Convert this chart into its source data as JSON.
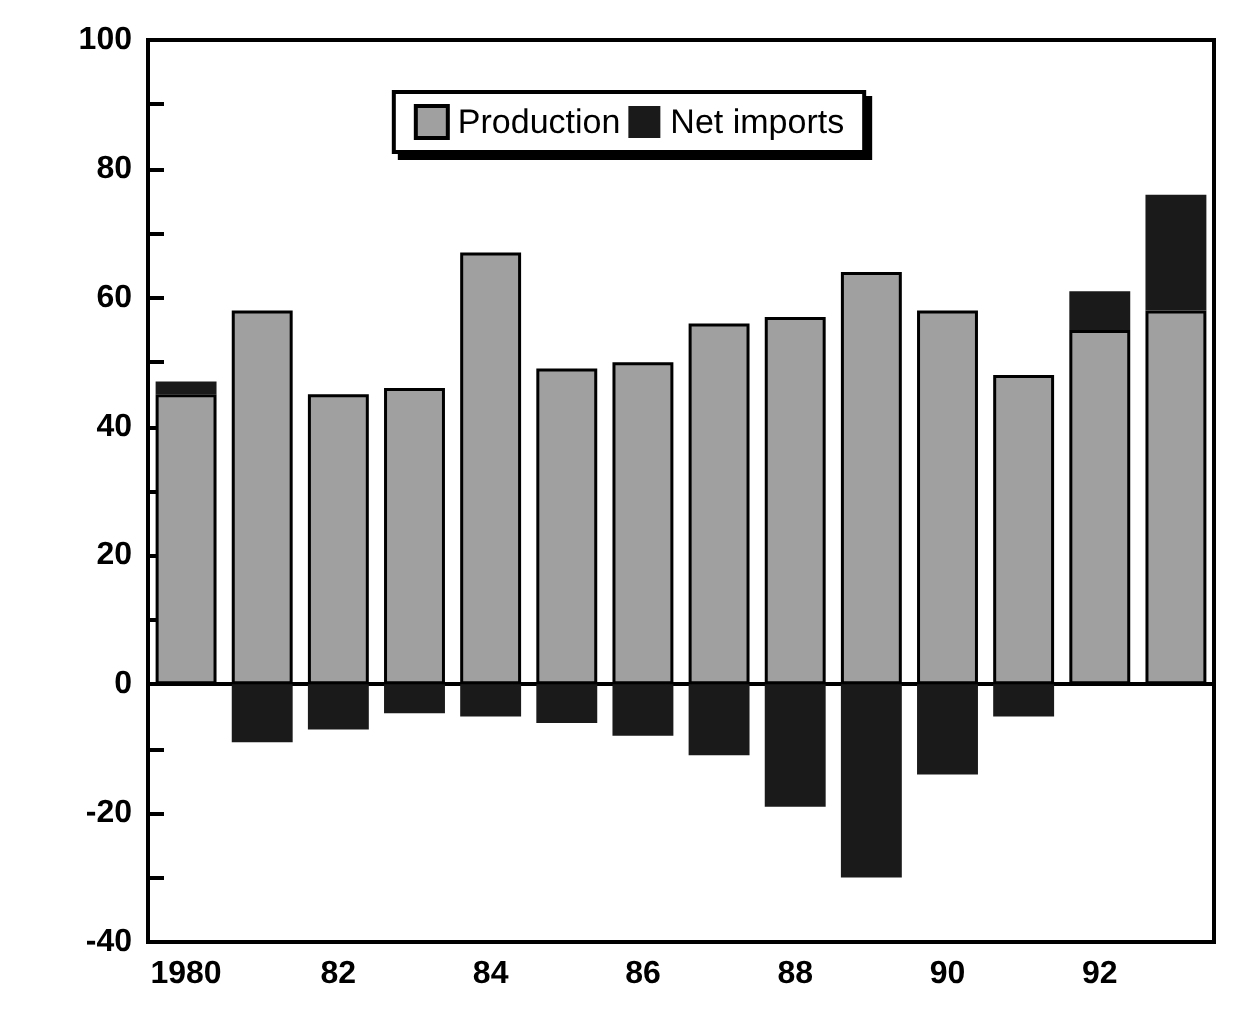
{
  "chart_data": {
    "type": "bar",
    "stacked": true,
    "categories": [
      "1980",
      null,
      "82",
      null,
      "84",
      null,
      "86",
      null,
      "88",
      null,
      "90",
      null,
      "92",
      null
    ],
    "series": [
      {
        "name": "Production",
        "color": "#a0a0a0",
        "values": [
          45,
          58,
          45,
          46,
          67,
          49,
          50,
          56,
          57,
          64,
          58,
          48,
          55,
          58
        ]
      },
      {
        "name": "Net imports",
        "color": "#1a1a1a",
        "values": [
          2,
          -9,
          -7,
          -4.5,
          -5,
          -6,
          -8,
          -11,
          -19,
          -30,
          -14,
          -5,
          6,
          18
        ]
      }
    ],
    "ylim": [
      -40,
      100
    ],
    "yticks": [
      -40,
      {
        "value": -30,
        "label": null
      },
      -20,
      {
        "value": -10,
        "label": null
      },
      0,
      {
        "value": 10,
        "label": null
      },
      20,
      {
        "value": 30,
        "label": null
      },
      40,
      {
        "value": 50,
        "label": null
      },
      60,
      {
        "value": 70,
        "label": null
      },
      80,
      {
        "value": 90,
        "label": null
      },
      100
    ],
    "legend": "top"
  }
}
